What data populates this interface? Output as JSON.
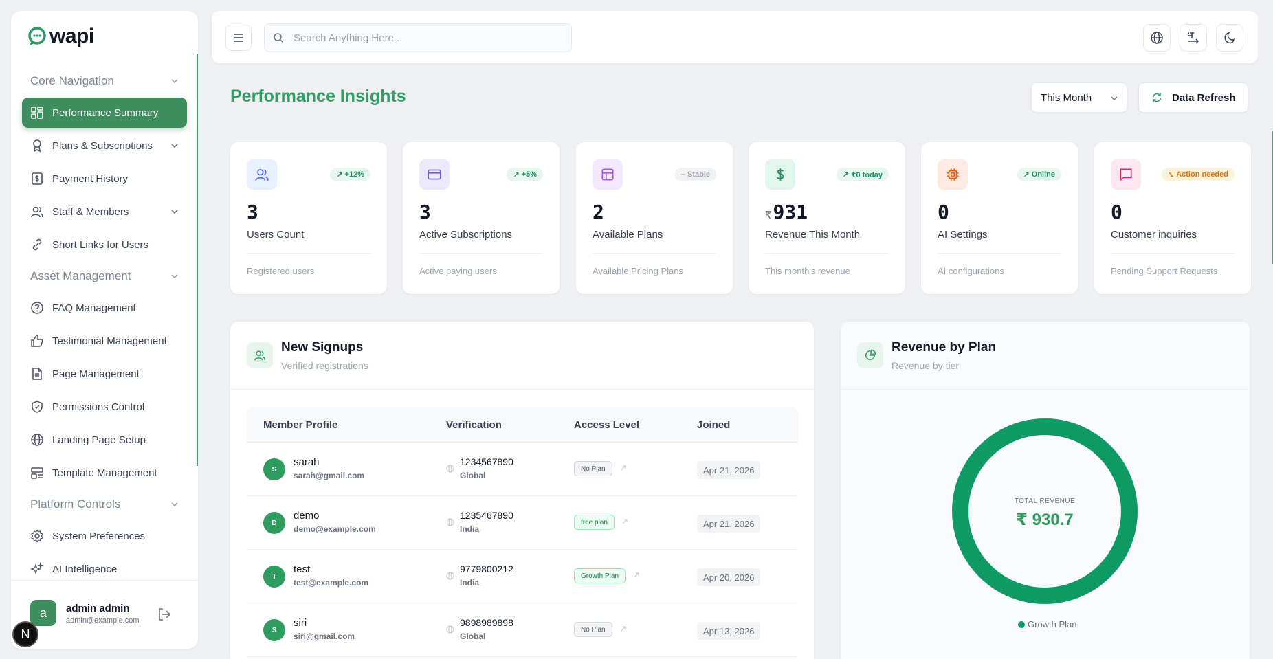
{
  "brand": {
    "name": "wapi",
    "accent": "#3f8f5e",
    "title_green": "#2f9f62"
  },
  "sidebar": {
    "sections": [
      {
        "title": "Core Navigation"
      },
      {
        "title": "Asset Management"
      },
      {
        "title": "Platform Controls"
      }
    ],
    "items": [
      {
        "label": "Performance Summary",
        "icon": "dashboard-icon"
      },
      {
        "label": "Plans & Subscriptions",
        "icon": "award-icon"
      },
      {
        "label": "Payment History",
        "icon": "dollar-doc-icon"
      },
      {
        "label": "Staff & Members",
        "icon": "users-icon"
      },
      {
        "label": "Short Links for Users",
        "icon": "link-icon"
      },
      {
        "label": "FAQ Management",
        "icon": "help-circle-icon"
      },
      {
        "label": "Testimonial Management",
        "icon": "thumbs-up-icon"
      },
      {
        "label": "Page Management",
        "icon": "file-icon"
      },
      {
        "label": "Permissions Control",
        "icon": "shield-icon"
      },
      {
        "label": "Landing Page Setup",
        "icon": "globe-icon"
      },
      {
        "label": "Template Management",
        "icon": "template-icon"
      },
      {
        "label": "System Preferences",
        "icon": "gear-icon"
      },
      {
        "label": "AI Intelligence",
        "icon": "sparkles-icon"
      }
    ],
    "user": {
      "initial": "a",
      "name": "admin admin",
      "email": "admin@example.com"
    },
    "n_badge": "N"
  },
  "topbar": {
    "search_placeholder": "Search Anything Here..."
  },
  "header": {
    "title": "Performance Insights",
    "period": "This Month",
    "refresh_label": "Data Refresh"
  },
  "stats": [
    {
      "value": "3",
      "label": "Users Count",
      "sub": "Registered users",
      "badge": "+12%",
      "icon": "users-icon"
    },
    {
      "value": "3",
      "label": "Active Subscriptions",
      "sub": "Active paying users",
      "badge": "+5%",
      "icon": "credit-card-icon"
    },
    {
      "value": "2",
      "label": "Available Plans",
      "sub": "Available Pricing Plans",
      "badge": "Stable",
      "icon": "layout-icon"
    },
    {
      "value": "931",
      "currency": "₹",
      "label": "Revenue This Month",
      "sub": "This month's revenue",
      "badge": "₹0 today",
      "icon": "dollar-icon"
    },
    {
      "value": "0",
      "label": "AI Settings",
      "sub": "AI configurations",
      "badge": "Online",
      "icon": "cpu-icon"
    },
    {
      "value": "0",
      "label": "Customer inquiries",
      "sub": "Pending Support Requests",
      "badge": "Action needed",
      "icon": "message-icon"
    }
  ],
  "signups": {
    "title": "New Signups",
    "subtitle": "Verified registrations",
    "columns": [
      "Member Profile",
      "Verification",
      "Access Level",
      "Joined"
    ],
    "rows": [
      {
        "initial": "S",
        "name": "sarah",
        "email": "sarah@gmail.com",
        "phone": "1234567890",
        "region": "Global",
        "plan": "No Plan",
        "joined": "Apr 21, 2026"
      },
      {
        "initial": "D",
        "name": "demo",
        "email": "demo@example.com",
        "phone": "1235467890",
        "region": "India",
        "plan": "free plan",
        "joined": "Apr 21, 2026"
      },
      {
        "initial": "T",
        "name": "test",
        "email": "test@example.com",
        "phone": "9779800212",
        "region": "India",
        "plan": "Growth Plan",
        "joined": "Apr 20, 2026"
      },
      {
        "initial": "S",
        "name": "siri",
        "email": "siri@gmail.com",
        "phone": "9898989898",
        "region": "Global",
        "plan": "No Plan",
        "joined": "Apr 13, 2026"
      }
    ]
  },
  "revenue": {
    "title": "Revenue by Plan",
    "subtitle": "Revenue by tier",
    "total_caption": "TOTAL REVENUE",
    "total_value": "₹ 930.7",
    "legend": [
      {
        "name": "Growth Plan",
        "color": "#0f9a63",
        "share": 1.0
      }
    ]
  }
}
